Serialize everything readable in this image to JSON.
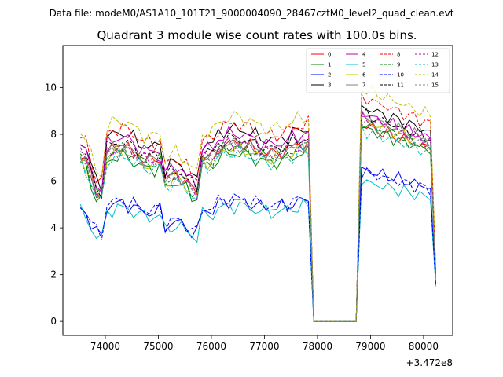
{
  "suptitle": "Data file: modeM0/AS1A10_101T21_9000004090_28467cztM0_level2_quad_clean.evt",
  "chart_data": {
    "type": "line",
    "title": "Quadrant 3 module wise count rates with 100.0s bins.",
    "xlabel": "",
    "ylabel": "",
    "x_offset_label": "+3.472e8",
    "xlim": [
      73200,
      80550
    ],
    "ylim": [
      -0.6,
      11.8
    ],
    "x_ticks": [
      74000,
      75000,
      76000,
      77000,
      78000,
      79000,
      80000
    ],
    "y_ticks": [
      0,
      2,
      4,
      6,
      8,
      10
    ],
    "legend_position": "top-right",
    "x_segments": [
      {
        "start": 73530,
        "end": 77830,
        "step": 100
      },
      {
        "start": 77930,
        "end": 78730,
        "step": 100
      },
      {
        "start": 78830,
        "end": 80230,
        "step": 100
      }
    ],
    "series": [
      {
        "name": "0",
        "color": "#ff0000",
        "dash": "solid",
        "segment_levels": [
          7.4,
          0.0,
          8.4
        ],
        "end_value": 2.0
      },
      {
        "name": "1",
        "color": "#008000",
        "dash": "solid",
        "segment_levels": [
          7.0,
          0.0,
          8.3
        ],
        "end_value": 1.9
      },
      {
        "name": "2",
        "color": "#0000ff",
        "dash": "solid",
        "segment_levels": [
          5.0,
          0.0,
          6.5
        ],
        "end_value": 1.6
      },
      {
        "name": "3",
        "color": "#000000",
        "dash": "solid",
        "segment_levels": [
          8.0,
          0.0,
          9.2
        ],
        "end_value": 2.1
      },
      {
        "name": "4",
        "color": "#bf00bf",
        "dash": "solid",
        "segment_levels": [
          7.8,
          0.0,
          8.9
        ],
        "end_value": 2.1
      },
      {
        "name": "5",
        "color": "#00bfbf",
        "dash": "solid",
        "segment_levels": [
          4.8,
          0.0,
          6.0
        ],
        "end_value": 1.5
      },
      {
        "name": "6",
        "color": "#bfbf00",
        "dash": "solid",
        "segment_levels": [
          7.2,
          0.0,
          8.6
        ],
        "end_value": 2.0
      },
      {
        "name": "7",
        "color": "#808080",
        "dash": "solid",
        "segment_levels": [
          7.4,
          0.0,
          8.8
        ],
        "end_value": 2.0
      },
      {
        "name": "8",
        "color": "#ff0000",
        "dash": "dashed",
        "segment_levels": [
          8.2,
          0.0,
          9.6
        ],
        "end_value": 2.2
      },
      {
        "name": "9",
        "color": "#008000",
        "dash": "dashed",
        "segment_levels": [
          7.3,
          0.0,
          8.5
        ],
        "end_value": 2.0
      },
      {
        "name": "10",
        "color": "#0000ff",
        "dash": "dashed",
        "segment_levels": [
          5.1,
          0.0,
          6.4
        ],
        "end_value": 1.6
      },
      {
        "name": "11",
        "color": "#000000",
        "dash": "dashed",
        "segment_levels": [
          7.6,
          0.0,
          8.9
        ],
        "end_value": 2.1
      },
      {
        "name": "12",
        "color": "#bf00bf",
        "dash": "dashed",
        "segment_levels": [
          7.4,
          0.0,
          8.7
        ],
        "end_value": 2.0
      },
      {
        "name": "13",
        "color": "#00bfbf",
        "dash": "dashed",
        "segment_levels": [
          7.0,
          0.0,
          8.2
        ],
        "end_value": 1.9
      },
      {
        "name": "14",
        "color": "#bfbf00",
        "dash": "dashed",
        "segment_levels": [
          8.5,
          0.0,
          10.0
        ],
        "end_value": 2.3
      },
      {
        "name": "15",
        "color": "#808080",
        "dash": "dashed",
        "segment_levels": [
          7.3,
          0.0,
          8.6
        ],
        "end_value": 2.0
      }
    ]
  }
}
